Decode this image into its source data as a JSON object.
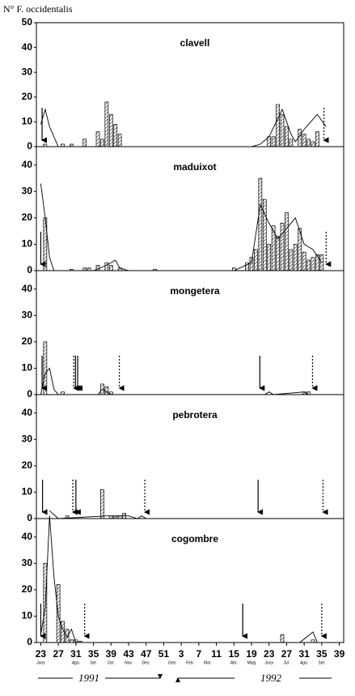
{
  "chart_data": [
    {
      "type": "bar-line",
      "title": "clavell",
      "ylabel": "N° F. occidentalis",
      "ylim": [
        0,
        50
      ],
      "yticks": [
        0,
        10,
        20,
        30,
        40,
        50
      ],
      "bars": {
        "x": [
          1,
          5,
          7,
          10,
          13,
          14,
          15,
          16,
          17,
          18,
          52,
          53,
          54,
          55,
          56,
          57,
          59,
          60,
          61,
          62,
          63
        ],
        "values": [
          1,
          1,
          1,
          3,
          6,
          3,
          18,
          13,
          9,
          5,
          4,
          4,
          17,
          13,
          8,
          3,
          7,
          5,
          3,
          2,
          6
        ]
      },
      "line": {
        "x": [
          0,
          1,
          2,
          4,
          48,
          50,
          52,
          55,
          57,
          58,
          60,
          63,
          65
        ],
        "values": [
          9,
          15,
          8,
          0,
          0,
          1,
          4,
          15,
          5,
          2,
          7,
          13,
          8
        ]
      },
      "solid_arrows": [
        0.3
      ],
      "dotted_arrows": [
        64.5
      ]
    },
    {
      "type": "bar-line",
      "title": "maduixot",
      "ylim": [
        0,
        47
      ],
      "yticks": [
        0,
        10,
        20,
        30,
        40
      ],
      "bars": {
        "x": [
          1,
          7,
          10,
          11,
          13,
          15,
          16,
          18,
          26,
          44,
          47,
          48,
          49,
          50,
          51,
          52,
          53,
          54,
          55,
          56,
          57,
          58,
          59,
          60,
          61,
          62,
          63,
          64
        ],
        "values": [
          20,
          0.5,
          1,
          1,
          2,
          3,
          2,
          1,
          0.5,
          1,
          3,
          5,
          8,
          35,
          27,
          10,
          17,
          13,
          18,
          22,
          8,
          10,
          16,
          7,
          4,
          5,
          6,
          6
        ]
      },
      "line": {
        "x": [
          0,
          1,
          2,
          3,
          12,
          15,
          17,
          18,
          20,
          44,
          48,
          50,
          52,
          54,
          56,
          58,
          60,
          62,
          64
        ],
        "values": [
          33,
          20,
          5,
          0,
          0,
          2,
          4,
          1,
          0,
          0,
          3,
          25,
          18,
          12,
          16,
          20,
          10,
          8,
          3
        ]
      },
      "solid_arrows": [
        0
      ],
      "dotted_arrows": [
        65
      ]
    },
    {
      "type": "bar-line",
      "title": "mongetera",
      "ylim": [
        0,
        47
      ],
      "yticks": [
        0,
        10,
        20,
        30,
        40
      ],
      "bars": {
        "x": [
          1,
          5,
          14,
          15,
          16,
          60,
          61
        ],
        "values": [
          20,
          1,
          4,
          3,
          1,
          1,
          1
        ]
      },
      "line": {
        "x": [
          0,
          1,
          2,
          3,
          4,
          13,
          14,
          15,
          16,
          51,
          52,
          53,
          60,
          61
        ],
        "values": [
          0,
          8,
          10,
          2,
          0,
          0,
          2,
          1,
          0,
          0,
          1,
          0,
          1,
          0
        ]
      },
      "solid_arrows": [
        0.3,
        7.9,
        8.4,
        49.9
      ],
      "dotted_arrows": [
        7.5,
        17.9,
        61.9
      ]
    },
    {
      "type": "bar-line",
      "title": "pebrotera",
      "ylim": [
        0,
        47
      ],
      "yticks": [
        0,
        10,
        20,
        30,
        40
      ],
      "bars": {
        "x": [
          6,
          14,
          16,
          17,
          18,
          19
        ],
        "values": [
          1,
          11,
          1,
          1,
          1,
          2
        ]
      },
      "line": {
        "x": [
          2,
          4,
          15,
          20,
          22,
          23,
          24
        ],
        "values": [
          3,
          0,
          1,
          1,
          0,
          1,
          0
        ]
      },
      "solid_arrows": [
        0.4,
        8,
        49.5
      ],
      "dotted_arrows": [
        7.3,
        23.7,
        64.3
      ]
    },
    {
      "type": "bar-line",
      "title": "cogombre",
      "ylim": [
        0,
        47
      ],
      "yticks": [
        0,
        10,
        20,
        30,
        40
      ],
      "bars": {
        "x": [
          1,
          4,
          5,
          6,
          7,
          8,
          9,
          55,
          62
        ],
        "values": [
          30,
          22,
          8,
          5,
          1,
          1,
          0.5,
          3,
          1
        ]
      },
      "line": {
        "x": [
          0,
          1,
          2,
          3,
          4,
          5,
          6,
          7,
          8,
          59,
          62,
          63
        ],
        "values": [
          3,
          13,
          48,
          25,
          10,
          5,
          2,
          5,
          0,
          0,
          4,
          0
        ]
      },
      "solid_arrows": [
        0,
        46
      ],
      "dotted_arrows": [
        10,
        64
      ],
      "xlim": [
        -1,
        69
      ],
      "xticks": [
        {
          "value": 0,
          "label": "23"
        },
        {
          "value": 4,
          "label": "27"
        },
        {
          "value": 8,
          "label": "31"
        },
        {
          "value": 12,
          "label": "35"
        },
        {
          "value": 16,
          "label": "39"
        },
        {
          "value": 20,
          "label": "43"
        },
        {
          "value": 24,
          "label": "47"
        },
        {
          "value": 28,
          "label": "51"
        },
        {
          "value": 32,
          "label": "3"
        },
        {
          "value": 36,
          "label": "7"
        },
        {
          "value": 40,
          "label": "11"
        },
        {
          "value": 44,
          "label": "15"
        },
        {
          "value": 48,
          "label": "19"
        },
        {
          "value": 52,
          "label": "23"
        },
        {
          "value": 56,
          "label": "27"
        },
        {
          "value": 60,
          "label": "31"
        },
        {
          "value": 64,
          "label": "35"
        },
        {
          "value": 68,
          "label": "39"
        }
      ],
      "month_labels": [
        {
          "value": 0,
          "label": "Juny"
        },
        {
          "value": 8,
          "label": "Ago."
        },
        {
          "value": 12,
          "label": "Set."
        },
        {
          "value": 16,
          "label": "Oct."
        },
        {
          "value": 20,
          "label": "Nov."
        },
        {
          "value": 24,
          "label": "Des."
        },
        {
          "value": 30,
          "label": "Gen."
        },
        {
          "value": 34,
          "label": "Feb."
        },
        {
          "value": 38,
          "label": "Mar."
        },
        {
          "value": 44,
          "label": "Abr."
        },
        {
          "value": 48,
          "label": "Maig"
        },
        {
          "value": 52,
          "label": "Juny"
        },
        {
          "value": 56,
          "label": "Jul."
        },
        {
          "value": 60,
          "label": "Ago."
        },
        {
          "value": 64,
          "label": "Set."
        }
      ],
      "year_labels": [
        "1991",
        "1992"
      ]
    }
  ]
}
